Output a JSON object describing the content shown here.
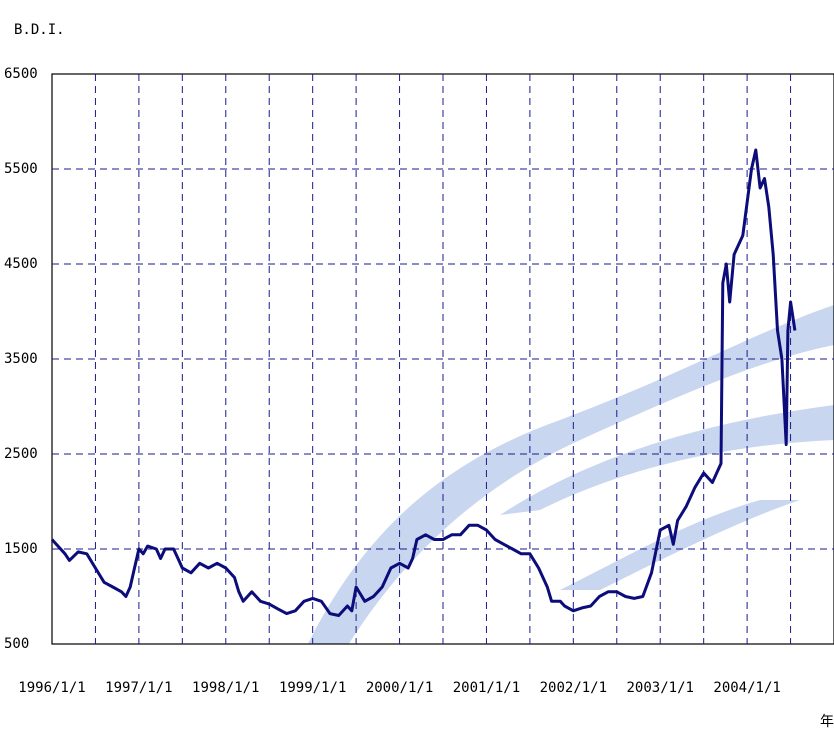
{
  "chart_data": {
    "type": "line",
    "title": "B.D.I.",
    "x_label": "年",
    "xlim": [
      1996,
      2005
    ],
    "ylim": [
      500,
      6500
    ],
    "xticks": [
      {
        "value": 1996,
        "label": "1996/1/1"
      },
      {
        "value": 1997,
        "label": "1997/1/1"
      },
      {
        "value": 1998,
        "label": "1998/1/1"
      },
      {
        "value": 1999,
        "label": "1999/1/1"
      },
      {
        "value": 2000,
        "label": "2000/1/1"
      },
      {
        "value": 2001,
        "label": "2001/1/1"
      },
      {
        "value": 2002,
        "label": "2002/1/1"
      },
      {
        "value": 2003,
        "label": "2003/1/1"
      },
      {
        "value": 2004,
        "label": "2004/1/1"
      }
    ],
    "xminor_ticks": [
      1996.5,
      1997.5,
      1998.5,
      1999.5,
      2000.5,
      2001.5,
      2002.5,
      2003.5,
      2004.5
    ],
    "yticks": [
      500,
      1500,
      2500,
      3500,
      4500,
      5500,
      6500
    ],
    "grid": true,
    "series": [
      {
        "color": "#0c0c7a",
        "x": [
          1996.0,
          1996.05,
          1996.15,
          1996.2,
          1996.3,
          1996.4,
          1996.5,
          1996.6,
          1996.7,
          1996.8,
          1996.85,
          1996.9,
          1996.95,
          1997.0,
          1997.05,
          1997.1,
          1997.2,
          1997.25,
          1997.3,
          1997.4,
          1997.45,
          1997.5,
          1997.6,
          1997.7,
          1997.8,
          1997.9,
          1998.0,
          1998.1,
          1998.15,
          1998.2,
          1998.3,
          1998.4,
          1998.5,
          1998.6,
          1998.7,
          1998.8,
          1998.9,
          1999.0,
          1999.1,
          1999.2,
          1999.3,
          1999.4,
          1999.45,
          1999.5,
          1999.6,
          1999.7,
          1999.8,
          1999.9,
          2000.0,
          2000.1,
          2000.15,
          2000.2,
          2000.3,
          2000.4,
          2000.5,
          2000.6,
          2000.7,
          2000.8,
          2000.9,
          2001.0,
          2001.1,
          2001.2,
          2001.3,
          2001.4,
          2001.5,
          2001.6,
          2001.7,
          2001.75,
          2001.85,
          2001.9,
          2002.0,
          2002.1,
          2002.2,
          2002.3,
          2002.4,
          2002.5,
          2002.6,
          2002.7,
          2002.8,
          2002.9,
          2003.0,
          2003.1,
          2003.15,
          2003.2,
          2003.3,
          2003.4,
          2003.5,
          2003.6,
          2003.65,
          2003.7,
          2003.72,
          2003.76,
          2003.8,
          2003.85,
          2003.95,
          2004.05,
          2004.1,
          2004.15,
          2004.2,
          2004.25,
          2004.3,
          2004.35,
          2004.4,
          2004.45,
          2004.47,
          2004.5,
          2004.55
        ],
        "values": [
          1600,
          1550,
          1450,
          1380,
          1470,
          1450,
          1300,
          1150,
          1100,
          1050,
          1000,
          1100,
          1300,
          1500,
          1450,
          1530,
          1500,
          1400,
          1500,
          1500,
          1400,
          1300,
          1250,
          1350,
          1300,
          1350,
          1300,
          1200,
          1050,
          950,
          1050,
          950,
          920,
          870,
          820,
          850,
          950,
          980,
          950,
          820,
          800,
          900,
          850,
          1100,
          950,
          1000,
          1100,
          1300,
          1350,
          1300,
          1400,
          1600,
          1650,
          1600,
          1600,
          1650,
          1650,
          1750,
          1750,
          1700,
          1600,
          1550,
          1500,
          1450,
          1450,
          1300,
          1100,
          950,
          950,
          900,
          850,
          880,
          900,
          1000,
          1050,
          1050,
          1000,
          980,
          1000,
          1250,
          1700,
          1750,
          1550,
          1800,
          1950,
          2150,
          2300,
          2200,
          2300,
          2400,
          4300,
          4500,
          4100,
          4600,
          4800,
          5500,
          5700,
          5300,
          5400,
          5100,
          4600,
          3800,
          3500,
          2600,
          3800,
          4100,
          3800
        ]
      }
    ]
  }
}
